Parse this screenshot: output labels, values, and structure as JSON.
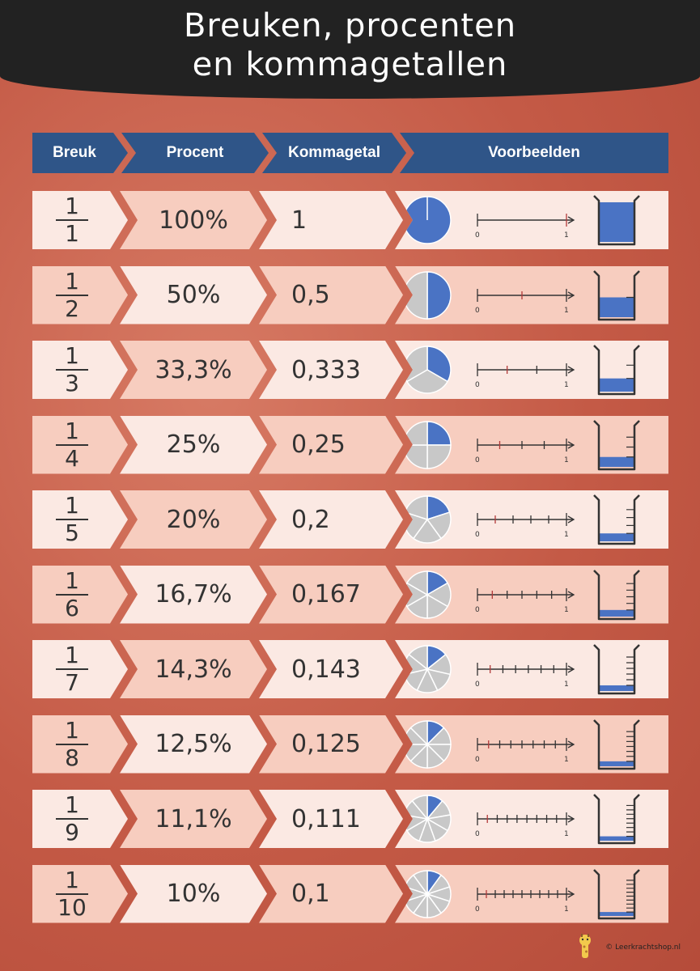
{
  "header": {
    "title_line1": "Breuken, procenten",
    "title_line2": "en kommagetallen"
  },
  "columns": [
    "Breuk",
    "Procent",
    "Kommagetal",
    "Voorbeelden"
  ],
  "rows": [
    {
      "numerator": "1",
      "denominator": "1",
      "percent": "100%",
      "decimal": "1",
      "parts": 1
    },
    {
      "numerator": "1",
      "denominator": "2",
      "percent": "50%",
      "decimal": "0,5",
      "parts": 2
    },
    {
      "numerator": "1",
      "denominator": "3",
      "percent": "33,3%",
      "decimal": "0,333",
      "parts": 3
    },
    {
      "numerator": "1",
      "denominator": "4",
      "percent": "25%",
      "decimal": "0,25",
      "parts": 4
    },
    {
      "numerator": "1",
      "denominator": "5",
      "percent": "20%",
      "decimal": "0,2",
      "parts": 5
    },
    {
      "numerator": "1",
      "denominator": "6",
      "percent": "16,7%",
      "decimal": "0,167",
      "parts": 6
    },
    {
      "numerator": "1",
      "denominator": "7",
      "percent": "14,3%",
      "decimal": "0,143",
      "parts": 7
    },
    {
      "numerator": "1",
      "denominator": "8",
      "percent": "12,5%",
      "decimal": "0,125",
      "parts": 8
    },
    {
      "numerator": "1",
      "denominator": "9",
      "percent": "11,1%",
      "decimal": "0,111",
      "parts": 9
    },
    {
      "numerator": "1",
      "denominator": "10",
      "percent": "10%",
      "decimal": "0,1",
      "parts": 10
    }
  ],
  "numberline": {
    "start_label": "0",
    "end_label": "1"
  },
  "footer": {
    "credit": "© Leerkrachtshop.nl"
  },
  "colors": {
    "header_bg": "#222222",
    "column_header_bg": "#2f5588",
    "fill_blue": "#4a73c4",
    "empty_grey": "#c8c8c8",
    "row_light": "#fbe9e3",
    "row_dark": "#f7cdbf",
    "background": "#c9624f"
  }
}
